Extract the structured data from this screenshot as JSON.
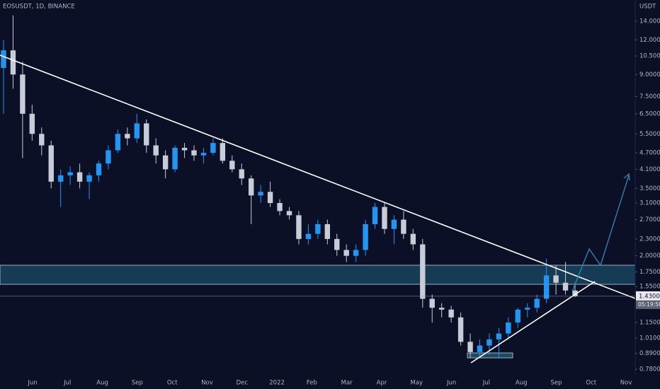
{
  "chart_data": {
    "type": "candlestick",
    "title": "EOSUSDT, 1D, BINANCE",
    "y_axis_label": "USDT",
    "log_scale": true,
    "ylim": [
      0.745,
      16.7
    ],
    "yticks": [
      {
        "value": 14,
        "label": "14.0000"
      },
      {
        "value": 12,
        "label": "12.0000"
      },
      {
        "value": 10.5,
        "label": "10.5000"
      },
      {
        "value": 9,
        "label": "9.0000"
      },
      {
        "value": 7.5,
        "label": "7.5000"
      },
      {
        "value": 6.5,
        "label": "6.5000"
      },
      {
        "value": 5.5,
        "label": "5.5000"
      },
      {
        "value": 4.7,
        "label": "4.7000"
      },
      {
        "value": 4.1,
        "label": "4.1000"
      },
      {
        "value": 3.5,
        "label": "3.5000"
      },
      {
        "value": 3.1,
        "label": "3.1000"
      },
      {
        "value": 2.7,
        "label": "2.7000"
      },
      {
        "value": 2.3,
        "label": "2.3000"
      },
      {
        "value": 2,
        "label": "2.0000"
      },
      {
        "value": 1.75,
        "label": "1.7500"
      },
      {
        "value": 1.55,
        "label": "1.5500"
      },
      {
        "value": 1.15,
        "label": "1.1500"
      },
      {
        "value": 1.01,
        "label": "1.0100"
      },
      {
        "value": 0.89,
        "label": "0.8900"
      },
      {
        "value": 0.78,
        "label": "0.7800"
      }
    ],
    "categories": [
      "Jun",
      "Jul",
      "Aug",
      "Sep",
      "Oct",
      "Nov",
      "Dec",
      "2022",
      "Feb",
      "Mar",
      "Apr",
      "May",
      "Jun",
      "Jul",
      "Aug",
      "Sep",
      "Oct",
      "Nov"
    ],
    "up_color": "#2196f3",
    "down_color": "#c8ccd6",
    "open": [
      9.5,
      11,
      9,
      6.5,
      5.5,
      5.0,
      3.7,
      3.9,
      4.0,
      3.7,
      3.9,
      4.3,
      4.8,
      5.5,
      5.3,
      6.0,
      5.0,
      4.6,
      4.1,
      4.9,
      4.8,
      4.6,
      4.7,
      5.1,
      4.4,
      4.1,
      3.8,
      3.3,
      3.4,
      3.1,
      2.9,
      2.8,
      2.3,
      2.4,
      2.6,
      2.3,
      2.1,
      2.0,
      2.1,
      2.6,
      3.0,
      2.5,
      2.7,
      2.4,
      2.2,
      1.4,
      1.3,
      1.28,
      1.2,
      0.98,
      0.9,
      0.95,
      1.0,
      1.05,
      1.15,
      1.28,
      1.3,
      1.4,
      1.7,
      1.6,
      1.5
    ],
    "high": [
      12,
      14.7,
      10,
      7,
      5.8,
      5.2,
      4.1,
      4.2,
      4.3,
      4.0,
      4.4,
      5.0,
      5.7,
      5.8,
      6.5,
      6.2,
      5.3,
      4.8,
      5.0,
      5.1,
      5.0,
      4.9,
      5.3,
      5.3,
      4.6,
      4.3,
      3.9,
      3.6,
      3.7,
      3.2,
      3.0,
      2.9,
      2.6,
      2.7,
      2.7,
      2.4,
      2.2,
      2.2,
      2.7,
      3.1,
      3.1,
      2.8,
      2.9,
      2.5,
      2.3,
      1.45,
      1.35,
      1.32,
      1.25,
      1.05,
      1.0,
      1.05,
      1.1,
      1.2,
      1.3,
      1.35,
      1.45,
      1.95,
      1.85,
      1.9,
      1.6
    ],
    "low": [
      6.5,
      8,
      4.5,
      5.2,
      4.6,
      3.5,
      3.0,
      3.6,
      3.5,
      3.2,
      3.7,
      4.1,
      4.7,
      5.0,
      5.1,
      4.7,
      4.3,
      3.8,
      4.0,
      4.5,
      4.4,
      4.3,
      4.6,
      4.3,
      4.0,
      3.6,
      2.6,
      3.1,
      3.0,
      2.8,
      2.7,
      2.2,
      2.2,
      2.3,
      2.2,
      2.0,
      1.9,
      1.9,
      2.0,
      2.5,
      2.4,
      2.2,
      2.3,
      2.1,
      1.3,
      1.15,
      1.2,
      1.15,
      0.95,
      0.86,
      0.86,
      0.88,
      0.86,
      1.0,
      1.1,
      1.2,
      1.25,
      1.35,
      1.45,
      1.45,
      1.42
    ],
    "close": [
      11,
      9,
      6.5,
      5.5,
      5.0,
      3.7,
      3.9,
      4.0,
      3.7,
      3.9,
      4.3,
      4.8,
      5.5,
      5.3,
      6.0,
      5.0,
      4.6,
      4.1,
      4.9,
      4.8,
      4.6,
      4.7,
      5.1,
      4.4,
      4.1,
      3.8,
      3.3,
      3.4,
      3.1,
      2.9,
      2.8,
      2.3,
      2.4,
      2.6,
      2.3,
      2.1,
      2.0,
      2.1,
      2.6,
      3.0,
      2.5,
      2.7,
      2.4,
      2.2,
      1.4,
      1.3,
      1.28,
      1.2,
      0.98,
      0.9,
      0.95,
      1.0,
      1.05,
      1.15,
      1.28,
      1.3,
      1.4,
      1.7,
      1.6,
      1.5,
      1.43
    ],
    "last_price": {
      "value": 1.43,
      "label": "1.4300"
    },
    "countdown": "05:19:58"
  }
}
